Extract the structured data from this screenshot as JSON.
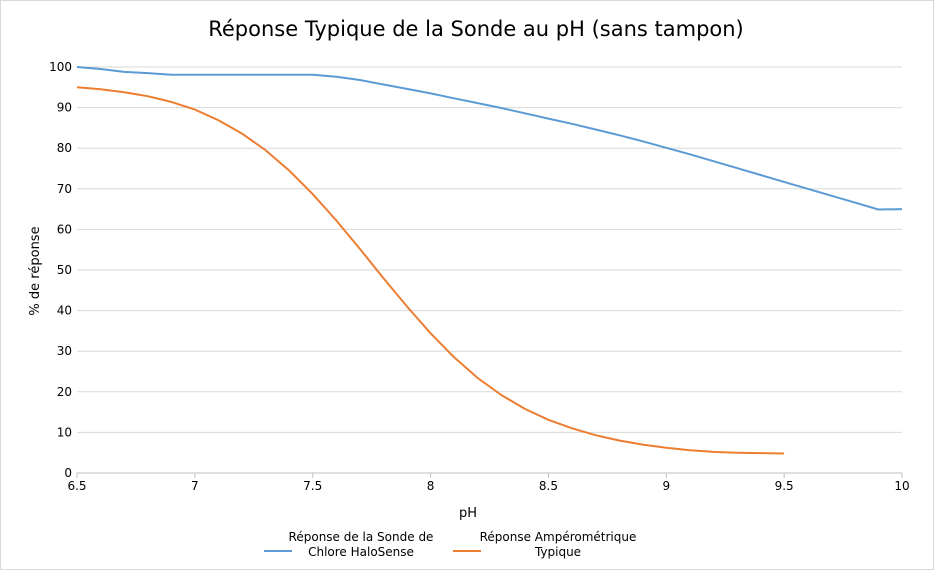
{
  "chart_data": {
    "type": "line",
    "title": "Réponse Typique de la Sonde au pH (sans tampon)",
    "xlabel": "pH",
    "ylabel": "% de réponse",
    "xlim": [
      6.5,
      10
    ],
    "ylim": [
      0,
      100
    ],
    "xticks": [
      6.5,
      7,
      7.5,
      8,
      8.5,
      9,
      9.5,
      10
    ],
    "xtick_labels": [
      "6.5",
      "7",
      "7.5",
      "8",
      "8.5",
      "9",
      "9.5",
      "10"
    ],
    "yticks": [
      0,
      10,
      20,
      30,
      40,
      50,
      60,
      70,
      80,
      90,
      100
    ],
    "grid": true,
    "legend_position": "bottom",
    "series": [
      {
        "name_lines": [
          "Réponse de la Sonde de",
          "Chlore HaloSense"
        ],
        "color": "#5b9bd5",
        "x": [
          6.5,
          6.6,
          6.7,
          6.8,
          6.9,
          7.0,
          7.1,
          7.2,
          7.3,
          7.4,
          7.5,
          7.6,
          7.7,
          7.8,
          7.9,
          8.0,
          8.1,
          8.2,
          8.3,
          8.4,
          8.5,
          8.6,
          8.7,
          8.8,
          8.9,
          9.0,
          9.1,
          9.2,
          9.3,
          9.4,
          9.5,
          9.6,
          9.7,
          9.8,
          9.9,
          10.0
        ],
        "y": [
          100,
          99.5,
          98.8,
          98.5,
          98.1,
          98.1,
          98.1,
          98.1,
          98.1,
          98.1,
          98.1,
          97.6,
          96.8,
          95.7,
          94.6,
          93.5,
          92.3,
          91.1,
          89.9,
          88.6,
          87.3,
          86.0,
          84.6,
          83.2,
          81.7,
          80.1,
          78.5,
          76.8,
          75.1,
          73.4,
          71.7,
          70.0,
          68.3,
          66.6,
          64.9,
          65.0
        ]
      },
      {
        "name_lines": [
          "Réponse Ampérométrique",
          "Typique"
        ],
        "color": "#ed7d31",
        "x": [
          6.5,
          6.6,
          6.7,
          6.8,
          6.9,
          7.0,
          7.1,
          7.2,
          7.3,
          7.4,
          7.5,
          7.6,
          7.7,
          7.8,
          7.9,
          8.0,
          8.1,
          8.2,
          8.3,
          8.4,
          8.5,
          8.6,
          8.7,
          8.8,
          8.9,
          9.0,
          9.1,
          9.2,
          9.3,
          9.4,
          9.5
        ],
        "y": [
          95,
          94.5,
          93.8,
          92.8,
          91.4,
          89.5,
          86.9,
          83.6,
          79.5,
          74.5,
          68.7,
          62.2,
          55.2,
          48.0,
          41.0,
          34.4,
          28.5,
          23.4,
          19.2,
          15.8,
          13.1,
          11.0,
          9.3,
          8.0,
          7.0,
          6.2,
          5.6,
          5.2,
          5.0,
          4.9,
          4.8
        ]
      }
    ]
  }
}
